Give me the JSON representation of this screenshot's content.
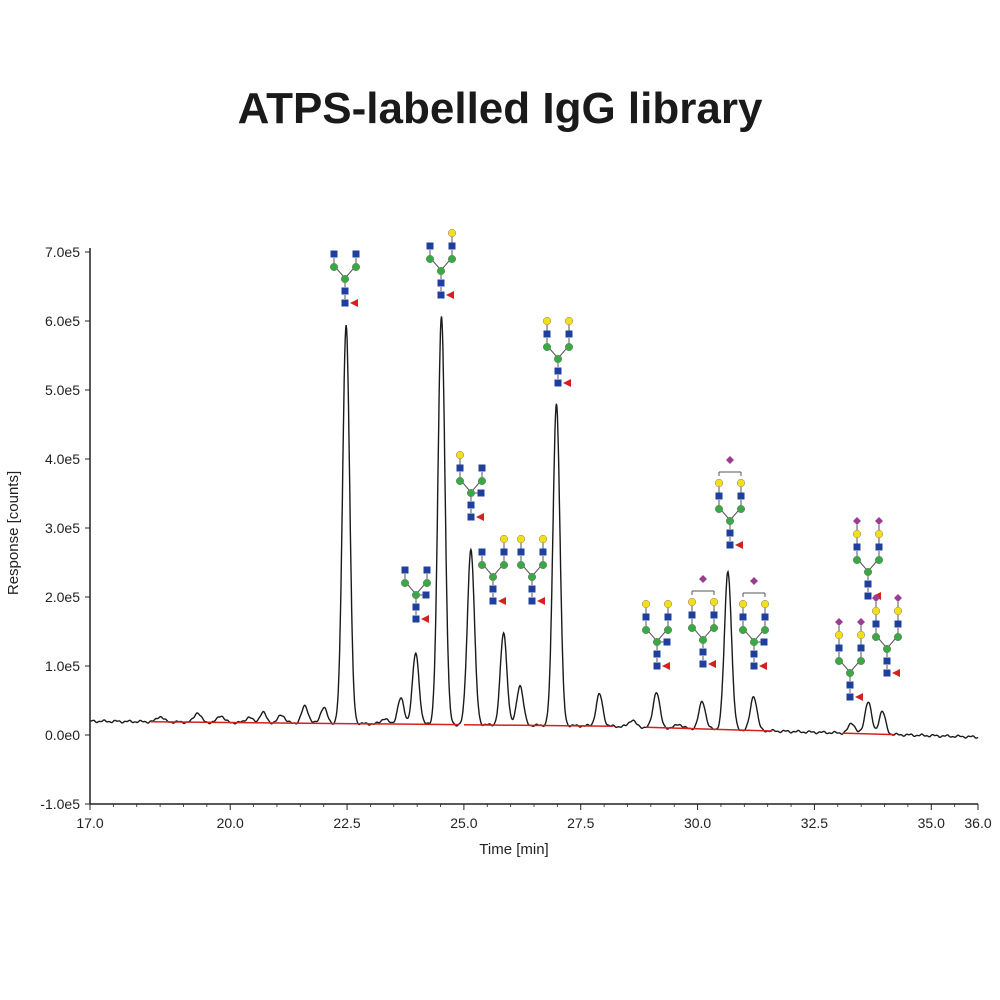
{
  "page": {
    "title": "ATPS-labelled IgG library"
  },
  "chart_data": {
    "type": "line",
    "title": "ATPS-labelled IgG library",
    "xlabel": "Time [min]",
    "ylabel": "Response [counts]",
    "xlim": [
      17.0,
      36.0
    ],
    "ylim": [
      -100000,
      700000
    ],
    "x_ticks": [
      17.0,
      20.0,
      22.5,
      25.0,
      27.5,
      30.0,
      32.5,
      35.0,
      36.0
    ],
    "x_tick_labels": [
      "17.0",
      "20.0",
      "22.5",
      "25.0",
      "27.5",
      "30.0",
      "32.5",
      "35.0",
      "36.0"
    ],
    "y_ticks": [
      -100000,
      0,
      100000,
      200000,
      300000,
      400000,
      500000,
      600000,
      700000
    ],
    "y_tick_labels": [
      "-1.0e5",
      "0.0e0",
      "1.0e5",
      "2.0e5",
      "3.0e5",
      "4.0e5",
      "5.0e5",
      "6.0e5",
      "7.0e5"
    ],
    "grid": false,
    "colors": {
      "trace": "#1a1a1a",
      "baseline": "#d42020"
    },
    "peaks": [
      {
        "rt": 18.5,
        "height": 8000
      },
      {
        "rt": 19.3,
        "height": 14000
      },
      {
        "rt": 19.8,
        "height": 10000
      },
      {
        "rt": 20.4,
        "height": 8000
      },
      {
        "rt": 20.7,
        "height": 15000
      },
      {
        "rt": 21.1,
        "height": 12000
      },
      {
        "rt": 21.6,
        "height": 25000
      },
      {
        "rt": 22.0,
        "height": 23000
      },
      {
        "rt": 22.48,
        "height": 578000
      },
      {
        "rt": 23.3,
        "height": 8000
      },
      {
        "rt": 23.65,
        "height": 37000
      },
      {
        "rt": 23.97,
        "height": 103000
      },
      {
        "rt": 24.52,
        "height": 592000
      },
      {
        "rt": 25.15,
        "height": 255000
      },
      {
        "rt": 25.85,
        "height": 134000
      },
      {
        "rt": 26.2,
        "height": 58000
      },
      {
        "rt": 26.98,
        "height": 467000
      },
      {
        "rt": 27.9,
        "height": 46000
      },
      {
        "rt": 28.6,
        "height": 10000
      },
      {
        "rt": 29.12,
        "height": 52000
      },
      {
        "rt": 29.6,
        "height": 6000
      },
      {
        "rt": 30.1,
        "height": 40000
      },
      {
        "rt": 30.65,
        "height": 230000
      },
      {
        "rt": 31.2,
        "height": 50000
      },
      {
        "rt": 33.3,
        "height": 15000
      },
      {
        "rt": 33.65,
        "height": 47000
      },
      {
        "rt": 33.95,
        "height": 33000
      }
    ]
  }
}
